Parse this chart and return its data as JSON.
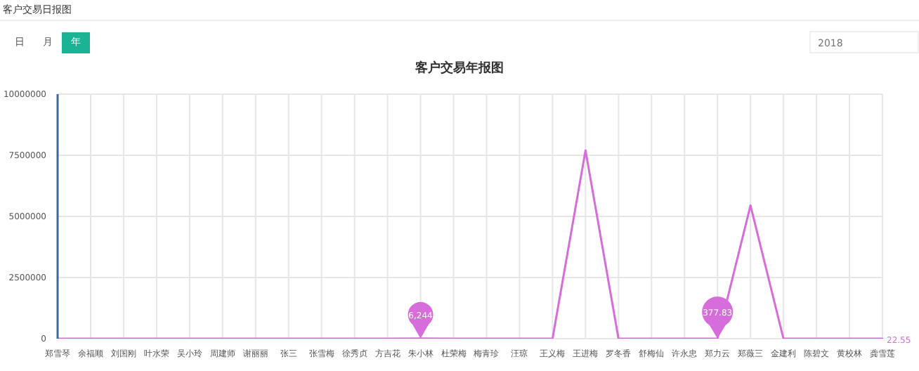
{
  "chart_data": {
    "type": "line",
    "title": "客户交易年报图",
    "categories": [
      "郑雪琴",
      "余福顺",
      "刘国刚",
      "叶水荣",
      "吴小玲",
      "周建师",
      "谢丽丽",
      "张三",
      "张雪梅",
      "徐秀贞",
      "方吉花",
      "朱小林",
      "杜荣梅",
      "梅青珍",
      "汪琼",
      "王义梅",
      "王进梅",
      "罗冬香",
      "舒梅仙",
      "许永忠",
      "郑力云",
      "郑薇三",
      "金建利",
      "陈碧文",
      "黄校林",
      "龚雪莲"
    ],
    "series": [
      {
        "color": "#d66ddb",
        "values": [
          0,
          0,
          0,
          0,
          0,
          0,
          0,
          0,
          0,
          0,
          0,
          6244,
          0,
          0,
          0,
          0,
          7700000,
          0,
          0,
          0,
          377.83,
          5450000,
          0,
          0,
          0,
          22.55
        ]
      }
    ],
    "ylim": [
      0,
      10000000
    ],
    "yticks": [
      0,
      2500000,
      5000000,
      7500000,
      10000000
    ],
    "grid": true,
    "annotations": [
      "客户交易日报图",
      "日",
      "月",
      "年",
      "2018",
      {
        "text": "6,244",
        "x": "朱小林",
        "y": 6244
      },
      {
        "text": "377.83",
        "x": "郑力云",
        "y": 377.83
      },
      {
        "text": "22.55",
        "x": "龚雪莲",
        "y": 22.55
      }
    ]
  }
}
